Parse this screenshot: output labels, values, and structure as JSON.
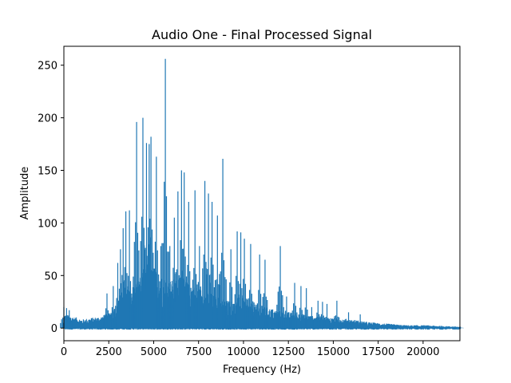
{
  "chart_data": {
    "type": "line",
    "title": "Audio One - Final Processed Signal",
    "xlabel": "Frequency (Hz)",
    "ylabel": "Amplitude",
    "xlim": [
      0,
      22050
    ],
    "ylim": [
      -12,
      268
    ],
    "xticks": [
      0,
      2500,
      5000,
      7500,
      10000,
      12500,
      15000,
      17500,
      20000
    ],
    "yticks": [
      0,
      50,
      100,
      150,
      200,
      250
    ],
    "line_color": "#1f77b4",
    "grid": false,
    "series": [
      {
        "peaks": [
          [
            0,
            20
          ],
          [
            150,
            19
          ],
          [
            300,
            17
          ],
          [
            2400,
            33
          ],
          [
            2750,
            40
          ],
          [
            3000,
            62
          ],
          [
            3150,
            75
          ],
          [
            3300,
            95
          ],
          [
            3450,
            111
          ],
          [
            3650,
            112
          ],
          [
            4050,
            196
          ],
          [
            4400,
            200
          ],
          [
            4600,
            176
          ],
          [
            4750,
            175
          ],
          [
            4850,
            182
          ],
          [
            5150,
            163
          ],
          [
            5400,
            78
          ],
          [
            5650,
            256
          ],
          [
            5900,
            78
          ],
          [
            6150,
            105
          ],
          [
            6350,
            130
          ],
          [
            6550,
            150
          ],
          [
            6700,
            148
          ],
          [
            6950,
            120
          ],
          [
            7300,
            131
          ],
          [
            7550,
            78
          ],
          [
            7850,
            140
          ],
          [
            8050,
            128
          ],
          [
            8250,
            120
          ],
          [
            8550,
            107
          ],
          [
            8850,
            161
          ],
          [
            9300,
            75
          ],
          [
            9650,
            92
          ],
          [
            9850,
            91
          ],
          [
            10050,
            85
          ],
          [
            10400,
            80
          ],
          [
            10900,
            70
          ],
          [
            11200,
            65
          ],
          [
            12050,
            78
          ],
          [
            12400,
            30
          ],
          [
            12850,
            43
          ],
          [
            13200,
            40
          ],
          [
            13500,
            38
          ],
          [
            13800,
            20
          ],
          [
            14150,
            26
          ],
          [
            14400,
            25
          ],
          [
            14650,
            23
          ],
          [
            15200,
            26
          ],
          [
            15850,
            15
          ],
          [
            16500,
            13
          ],
          [
            17000,
            5
          ],
          [
            17500,
            4
          ],
          [
            18500,
            3
          ],
          [
            20000,
            2
          ],
          [
            22050,
            1
          ]
        ],
        "envelope": [
          [
            0,
            10
          ],
          [
            1000,
            6
          ],
          [
            2000,
            8
          ],
          [
            2500,
            10
          ],
          [
            3000,
            18
          ],
          [
            3500,
            25
          ],
          [
            4000,
            32
          ],
          [
            4500,
            40
          ],
          [
            5000,
            42
          ],
          [
            5500,
            35
          ],
          [
            6000,
            33
          ],
          [
            6500,
            35
          ],
          [
            7000,
            30
          ],
          [
            7500,
            28
          ],
          [
            8000,
            25
          ],
          [
            8500,
            22
          ],
          [
            9000,
            20
          ],
          [
            9500,
            18
          ],
          [
            10000,
            18
          ],
          [
            11000,
            15
          ],
          [
            12000,
            12
          ],
          [
            13000,
            10
          ],
          [
            14000,
            8
          ],
          [
            15000,
            7
          ],
          [
            16000,
            6
          ],
          [
            17000,
            4
          ],
          [
            18000,
            3
          ],
          [
            19000,
            2
          ],
          [
            20000,
            2
          ],
          [
            22050,
            1
          ]
        ]
      }
    ]
  }
}
